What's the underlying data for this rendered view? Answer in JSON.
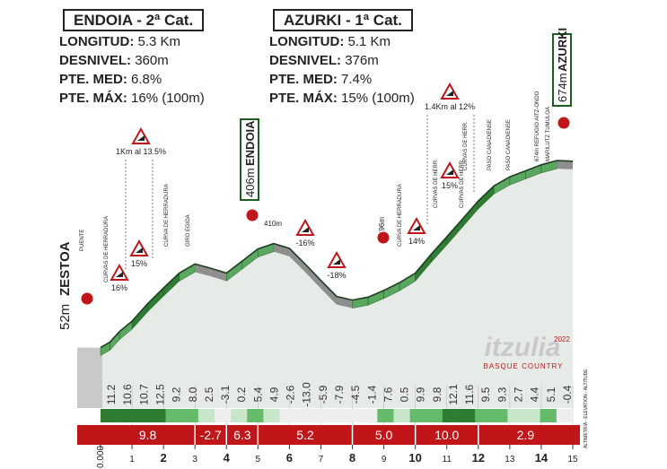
{
  "climbs": [
    {
      "title": "ENDOIA - 2ª Cat.",
      "stats": [
        {
          "label": "LONGITUD:",
          "value": "5.3 Km"
        },
        {
          "label": "DESNIVEL:",
          "value": "360m"
        },
        {
          "label": "PTE. MED:",
          "value": "6.8%"
        },
        {
          "label": "PTE. MÁX:",
          "value": "16% (100m)"
        }
      ]
    },
    {
      "title": "AZURKI - 1ª Cat.",
      "stats": [
        {
          "label": "LONGITUD:",
          "value": "5.1 Km"
        },
        {
          "label": "DESNIVEL:",
          "value": "376m"
        },
        {
          "label": "PTE. MED:",
          "value": "7.4%"
        },
        {
          "label": "PTE. MÁX:",
          "value": "15% (100m)"
        }
      ]
    }
  ],
  "chart_data": {
    "type": "area",
    "x_ticks": [
      "0.000",
      "1",
      "2",
      "3",
      "4",
      "5",
      "6",
      "7",
      "8",
      "9",
      "10",
      "11",
      "12",
      "13",
      "14",
      "15"
    ],
    "profile": {
      "x": [
        0,
        0.3,
        0.6,
        1.0,
        1.5,
        2.0,
        2.5,
        3.0,
        3.5,
        4.0,
        4.5,
        5.0,
        5.5,
        6.0,
        6.5,
        7.0,
        7.5,
        8.0,
        8.5,
        9.0,
        9.5,
        10.0,
        10.5,
        11.0,
        11.5,
        12.0,
        12.5,
        13.0,
        13.5,
        14.0,
        14.5,
        15.0
      ],
      "y": [
        52,
        70,
        105,
        140,
        198,
        250,
        300,
        330,
        316,
        300,
        340,
        380,
        398,
        382,
        330,
        275,
        222,
        210,
        220,
        242,
        268,
        300,
        362,
        420,
        480,
        540,
        590,
        620,
        640,
        660,
        674,
        672
      ]
    },
    "km_gradients": [
      "11.2",
      "10.6",
      "10.7",
      "12.5",
      "9.2",
      "8.0",
      "2.5",
      "-3.1",
      "0.2",
      "5.4",
      "4.9",
      "-2.6",
      "-13.0",
      "-5.9",
      "-7.9",
      "-4.5",
      "-1.4",
      "7.6",
      "0.5",
      "9.9",
      "9.8",
      "12.1",
      "11.6",
      "9.5",
      "9.3",
      "2.7",
      "4.4",
      "5.1",
      "-0.4"
    ],
    "segment_gradients": [
      {
        "value": "9.8",
        "from": 0,
        "to": 3
      },
      {
        "value": "-2.7",
        "from": 3,
        "to": 4
      },
      {
        "value": "6.3",
        "from": 4,
        "to": 5
      },
      {
        "value": "5.2",
        "from": 5,
        "to": 8
      },
      {
        "value": "5.0",
        "from": 8,
        "to": 10
      },
      {
        "value": "10.0",
        "from": 10,
        "to": 12
      },
      {
        "value": "2.9",
        "from": 12,
        "to": 15
      }
    ],
    "summit_labels": [
      {
        "text": "52m",
        "name": "ZESTOA",
        "sub": "PUENTE",
        "km": 0
      },
      {
        "text": "406m",
        "name": "ENDOIA",
        "km": 5.0
      },
      {
        "text": "674m",
        "name": "AZURKI",
        "km": 14.6
      }
    ],
    "peak_alt": [
      {
        "text": "410m",
        "km": 5.2
      },
      {
        "text": "296m",
        "km": 9.5
      }
    ],
    "point_labels": [
      "CURVAS DE HERRADURA",
      "CURVA DE HERRADURA",
      "GIRO EGIDA",
      "CURVA DE HERRADURA",
      "CURVAS DE HERR.",
      "CURVAS DE HERR.",
      "CURVAS DE HERR.",
      "PASO CANADIENSE",
      "PASO CANADIENSE",
      "674m REFUGIO AITZ-ONDO",
      "MARILUTZ TUMULOA"
    ],
    "grade_signs": [
      {
        "text": "1Km al 13.5%",
        "km": 1.5
      },
      {
        "text": "16%",
        "km": 1.2
      },
      {
        "text": "15%",
        "km": 1.6
      },
      {
        "text": "-16%",
        "km": 6.4
      },
      {
        "text": "-18%",
        "km": 7.4
      },
      {
        "text": "14%",
        "km": 10.0
      },
      {
        "text": "15%",
        "km": 11.0
      },
      {
        "text": "1.4Km al 12%",
        "km": 11.6
      }
    ],
    "brand": {
      "name": "itzulia",
      "year": "2022",
      "sub": "BASQUE COUNTRY"
    },
    "footer_note": "ALTIMETRÍA - ELEVATION - ALTITUDE",
    "colors": {
      "climb_dark": "#2e7d32",
      "climb_light": "#a5d6a7",
      "bar_red": "#c0161a",
      "profile_fill": "#e6ebe8"
    }
  }
}
